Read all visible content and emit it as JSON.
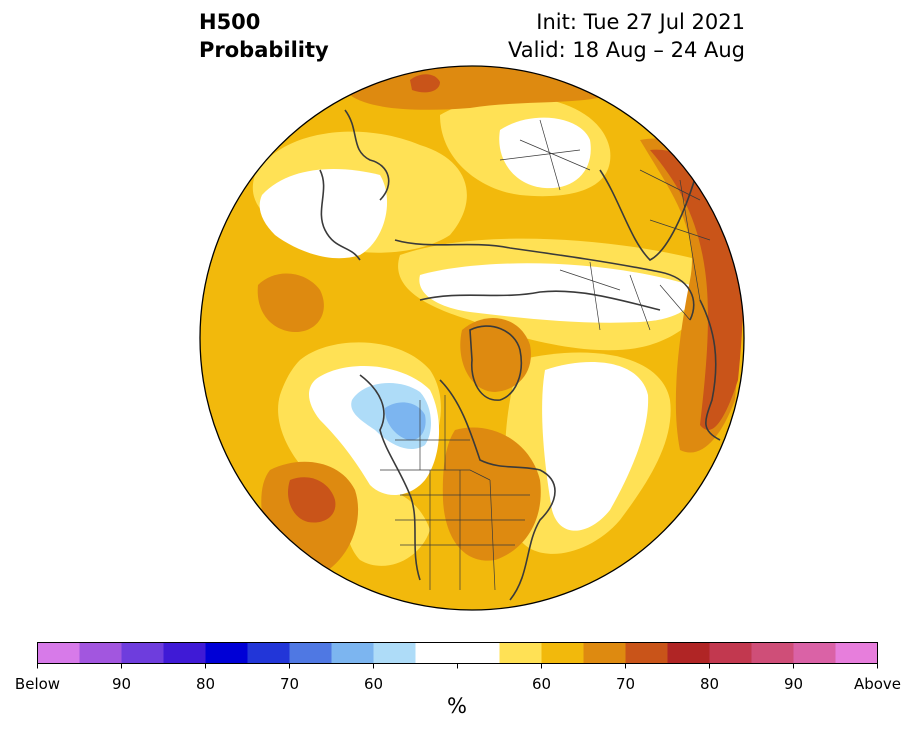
{
  "title": {
    "left_line1": "H500",
    "left_line2": "Probability",
    "right_line1": "Init: Tue 27 Jul 2021",
    "right_line2": "Valid: 18 Aug – 24 Aug"
  },
  "map": {
    "projection": "north-polar-stereographic",
    "basemap": "coastlines and country/state borders",
    "outline_color": "#000000",
    "border_color": "#3a3a3a"
  },
  "colorbar": {
    "unit_label": "%",
    "tick_labels": [
      "Below",
      "90",
      "80",
      "70",
      "60",
      "60",
      "70",
      "80",
      "90",
      "Above"
    ],
    "colors": [
      "#d77ae9",
      "#a256df",
      "#6e3ddd",
      "#3f1ad6",
      "#0000d6",
      "#2236d8",
      "#4f78e3",
      "#7cb5f0",
      "#aedcf8",
      "#ffffff",
      "#ffffff",
      "#ffe155",
      "#f2b90c",
      "#de8a10",
      "#c95419",
      "#b02525",
      "#c2384f",
      "#cf4e78",
      "#da62a6",
      "#e77edc"
    ]
  },
  "palette": {
    "yellow": "#ffe155",
    "gold": "#f2b90c",
    "orange": "#de8a10",
    "dark_orange": "#c95419",
    "light_blue": "#aedcf8",
    "mid_blue": "#7cb5f0",
    "white": "#ffffff"
  }
}
